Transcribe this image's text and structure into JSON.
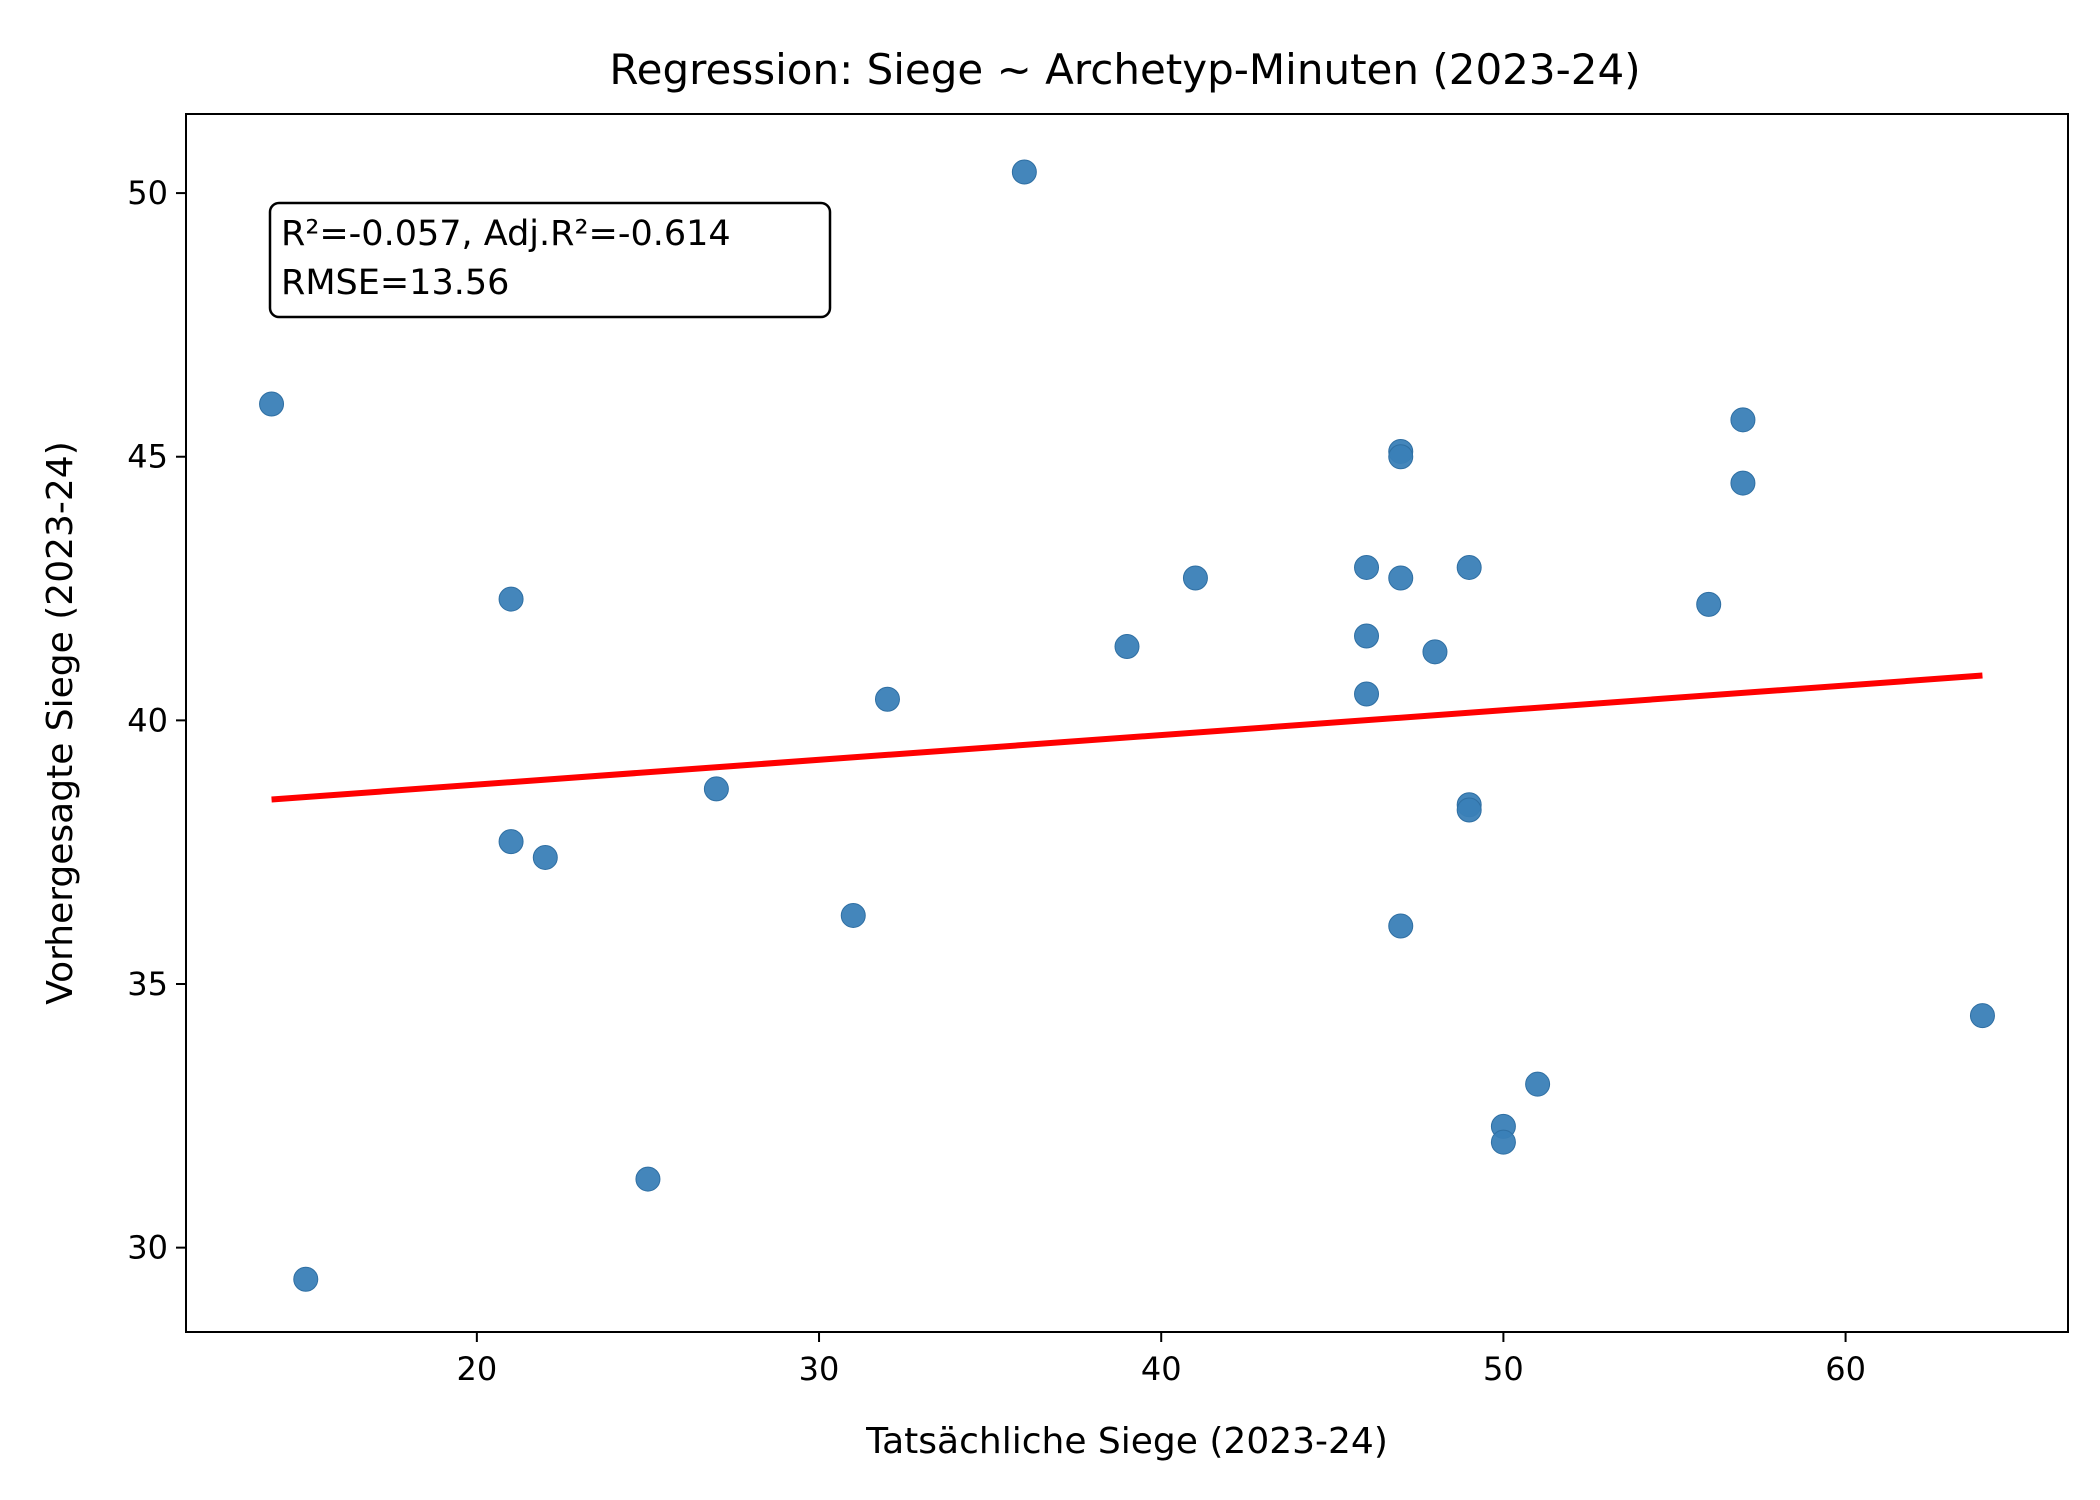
{
  "chart_data": {
    "type": "scatter",
    "title": "Regression: Siege ~ Archetyp-Minuten (2023-24)",
    "xlabel": "Tatsächliche Siege (2023-24)",
    "ylabel": "Vorhergesagte Siege (2023-24)",
    "xlim": [
      11.5,
      66.5
    ],
    "ylim": [
      28.4,
      51.5
    ],
    "xticks": [
      20,
      30,
      40,
      50,
      60
    ],
    "yticks": [
      30,
      35,
      40,
      45,
      50
    ],
    "grid": false,
    "annotation": {
      "line1": "R²=-0.057, Adj.R²=-0.614",
      "line2": "RMSE=13.56"
    },
    "points_color": "#3a7fb7",
    "fit_color": "#ff0000",
    "points": [
      {
        "x": 14,
        "y": 46.0
      },
      {
        "x": 15,
        "y": 29.4
      },
      {
        "x": 21,
        "y": 42.3
      },
      {
        "x": 21,
        "y": 37.7
      },
      {
        "x": 22,
        "y": 37.4
      },
      {
        "x": 25,
        "y": 31.3
      },
      {
        "x": 27,
        "y": 38.7
      },
      {
        "x": 31,
        "y": 36.3
      },
      {
        "x": 32,
        "y": 40.4
      },
      {
        "x": 36,
        "y": 50.4
      },
      {
        "x": 39,
        "y": 41.4
      },
      {
        "x": 41,
        "y": 42.7
      },
      {
        "x": 46,
        "y": 42.9
      },
      {
        "x": 46,
        "y": 41.6
      },
      {
        "x": 46,
        "y": 40.5
      },
      {
        "x": 47,
        "y": 45.1
      },
      {
        "x": 47,
        "y": 45.0
      },
      {
        "x": 47,
        "y": 42.7
      },
      {
        "x": 47,
        "y": 36.1
      },
      {
        "x": 48,
        "y": 41.3
      },
      {
        "x": 49,
        "y": 42.9
      },
      {
        "x": 49,
        "y": 38.4
      },
      {
        "x": 49,
        "y": 38.3
      },
      {
        "x": 50,
        "y": 32.3
      },
      {
        "x": 50,
        "y": 32.0
      },
      {
        "x": 51,
        "y": 33.1
      },
      {
        "x": 56,
        "y": 42.2
      },
      {
        "x": 57,
        "y": 45.7
      },
      {
        "x": 57,
        "y": 44.5
      },
      {
        "x": 64,
        "y": 34.4
      }
    ],
    "fit_line": {
      "x": [
        14,
        64
      ],
      "y": [
        38.5,
        40.85
      ]
    }
  }
}
